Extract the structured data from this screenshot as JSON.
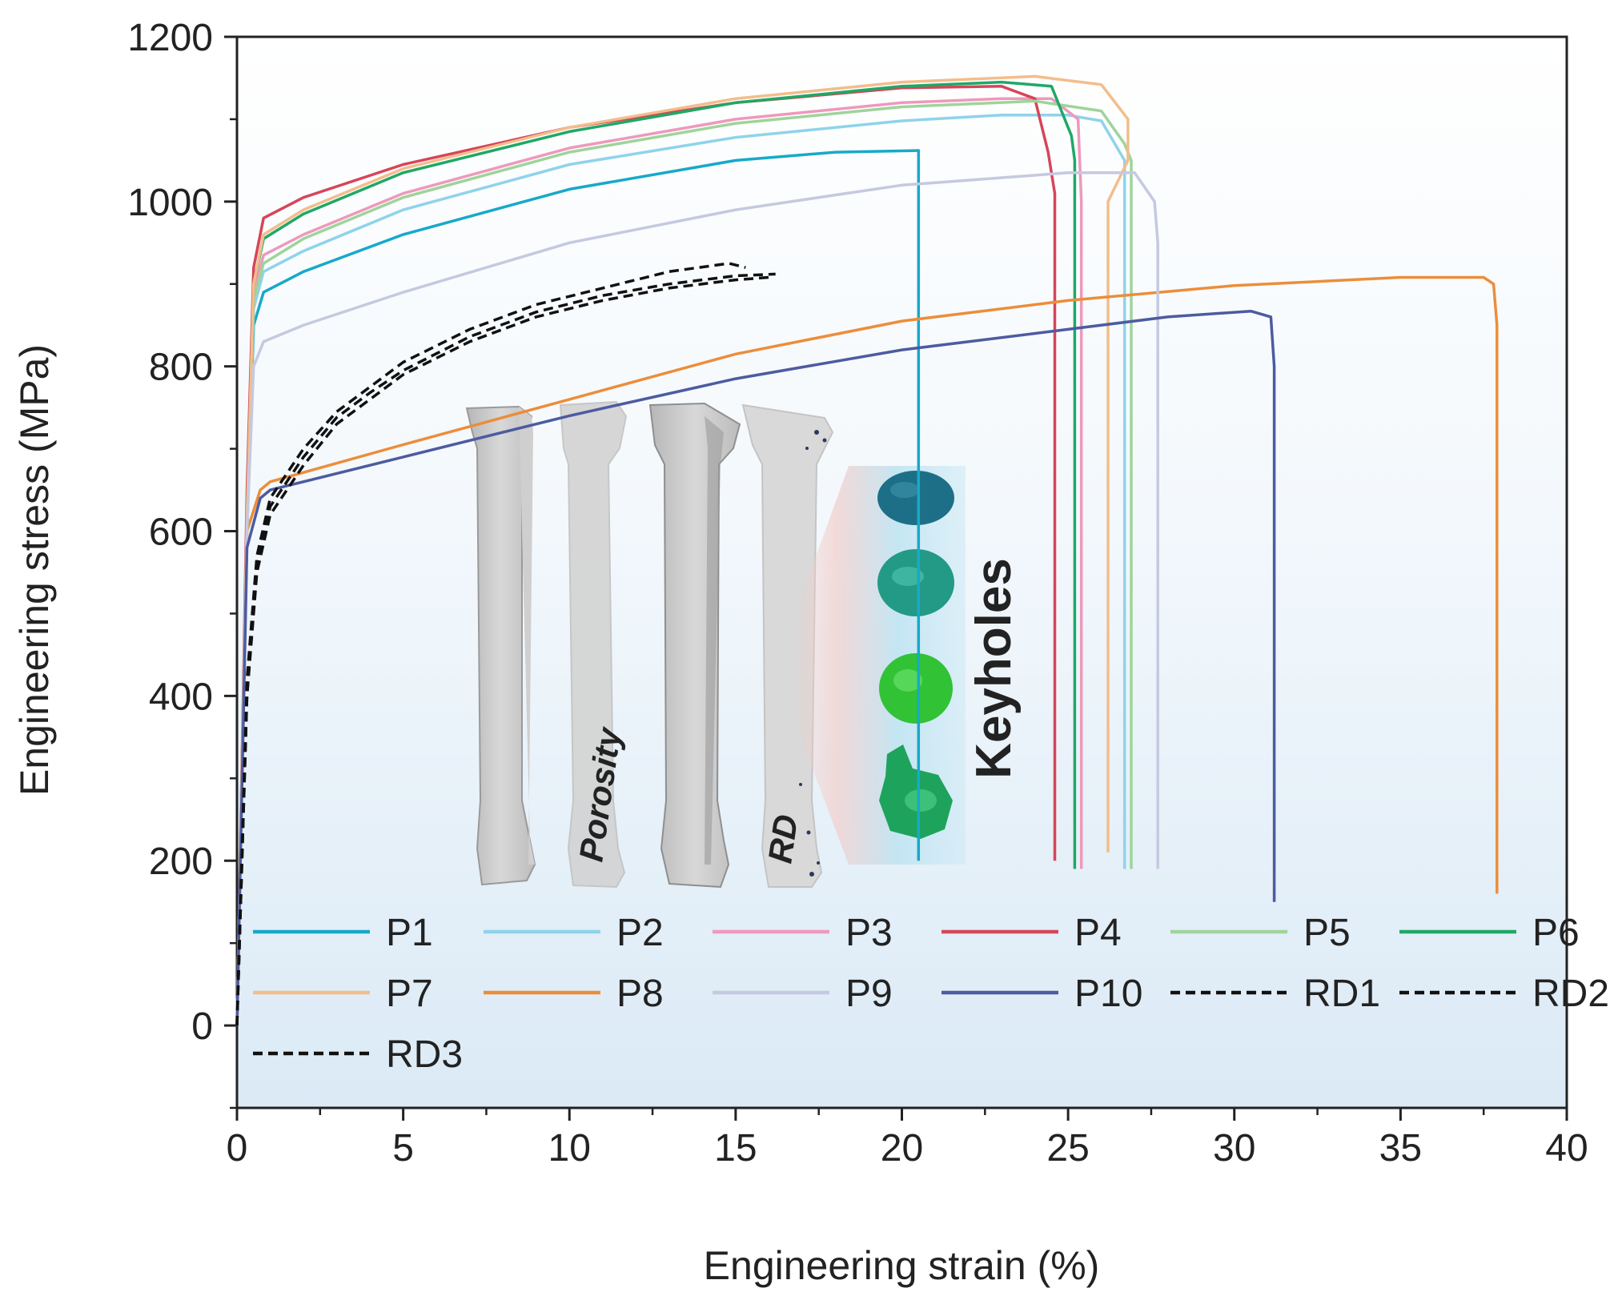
{
  "chart_data": {
    "type": "line",
    "title": "",
    "xlabel": "Engineering strain (%)",
    "ylabel": "Engineering stress (MPa)",
    "xlim": [
      0,
      40
    ],
    "ylim": [
      -100,
      1200
    ],
    "xticks": [
      0,
      5,
      10,
      15,
      20,
      25,
      30,
      35,
      40
    ],
    "yticks": [
      0,
      200,
      400,
      600,
      800,
      1000,
      1200
    ],
    "legend_position": "bottom-left",
    "grid": false,
    "series": [
      {
        "name": "P1",
        "color": "#17a9c9",
        "dash": false,
        "points": [
          [
            0,
            0
          ],
          [
            0.3,
            600
          ],
          [
            0.5,
            850
          ],
          [
            0.8,
            890
          ],
          [
            2,
            915
          ],
          [
            5,
            960
          ],
          [
            10,
            1015
          ],
          [
            15,
            1050
          ],
          [
            18,
            1060
          ],
          [
            20.5,
            1062
          ],
          [
            20.5,
            1000
          ],
          [
            20.5,
            200
          ]
        ]
      },
      {
        "name": "P2",
        "color": "#8fd3ea",
        "dash": false,
        "points": [
          [
            0,
            0
          ],
          [
            0.3,
            600
          ],
          [
            0.5,
            870
          ],
          [
            0.8,
            915
          ],
          [
            2,
            940
          ],
          [
            5,
            990
          ],
          [
            10,
            1045
          ],
          [
            15,
            1078
          ],
          [
            20,
            1098
          ],
          [
            23,
            1105
          ],
          [
            25,
            1105
          ],
          [
            26,
            1098
          ],
          [
            26.7,
            1050
          ],
          [
            26.7,
            190
          ]
        ]
      },
      {
        "name": "P3",
        "color": "#ee99bb",
        "dash": false,
        "points": [
          [
            0,
            0
          ],
          [
            0.3,
            600
          ],
          [
            0.5,
            890
          ],
          [
            0.8,
            935
          ],
          [
            2,
            960
          ],
          [
            5,
            1010
          ],
          [
            10,
            1065
          ],
          [
            15,
            1100
          ],
          [
            20,
            1120
          ],
          [
            23,
            1125
          ],
          [
            24.5,
            1125
          ],
          [
            25.3,
            1100
          ],
          [
            25.4,
            1000
          ],
          [
            25.4,
            190
          ]
        ]
      },
      {
        "name": "P4",
        "color": "#d6455a",
        "dash": false,
        "points": [
          [
            0,
            0
          ],
          [
            0.3,
            650
          ],
          [
            0.5,
            920
          ],
          [
            0.8,
            980
          ],
          [
            2,
            1005
          ],
          [
            5,
            1045
          ],
          [
            10,
            1090
          ],
          [
            15,
            1120
          ],
          [
            20,
            1138
          ],
          [
            23,
            1140
          ],
          [
            24,
            1125
          ],
          [
            24.4,
            1060
          ],
          [
            24.6,
            1010
          ],
          [
            24.6,
            200
          ]
        ]
      },
      {
        "name": "P5",
        "color": "#9fd49a",
        "dash": false,
        "points": [
          [
            0,
            0
          ],
          [
            0.3,
            600
          ],
          [
            0.5,
            880
          ],
          [
            0.8,
            925
          ],
          [
            2,
            955
          ],
          [
            5,
            1005
          ],
          [
            10,
            1060
          ],
          [
            15,
            1095
          ],
          [
            20,
            1115
          ],
          [
            24,
            1122
          ],
          [
            26,
            1110
          ],
          [
            26.7,
            1070
          ],
          [
            26.9,
            1050
          ],
          [
            26.9,
            190
          ]
        ]
      },
      {
        "name": "P6",
        "color": "#1fa866",
        "dash": false,
        "points": [
          [
            0,
            0
          ],
          [
            0.3,
            620
          ],
          [
            0.5,
            900
          ],
          [
            0.8,
            955
          ],
          [
            2,
            985
          ],
          [
            5,
            1035
          ],
          [
            10,
            1085
          ],
          [
            15,
            1120
          ],
          [
            20,
            1140
          ],
          [
            23,
            1145
          ],
          [
            24.5,
            1140
          ],
          [
            25.1,
            1080
          ],
          [
            25.2,
            1050
          ],
          [
            25.2,
            190
          ]
        ]
      },
      {
        "name": "P7",
        "color": "#f3bd8b",
        "dash": false,
        "points": [
          [
            0,
            0
          ],
          [
            0.3,
            620
          ],
          [
            0.5,
            900
          ],
          [
            0.8,
            960
          ],
          [
            2,
            990
          ],
          [
            5,
            1040
          ],
          [
            10,
            1090
          ],
          [
            15,
            1125
          ],
          [
            20,
            1145
          ],
          [
            24,
            1152
          ],
          [
            26,
            1142
          ],
          [
            26.8,
            1100
          ],
          [
            26.8,
            1050
          ],
          [
            26.2,
            1000
          ],
          [
            26.2,
            210
          ]
        ]
      },
      {
        "name": "P8",
        "color": "#ec8d3b",
        "dash": false,
        "points": [
          [
            0,
            0
          ],
          [
            0.3,
            600
          ],
          [
            0.7,
            650
          ],
          [
            1,
            660
          ],
          [
            5,
            705
          ],
          [
            10,
            760
          ],
          [
            15,
            815
          ],
          [
            20,
            855
          ],
          [
            25,
            880
          ],
          [
            30,
            898
          ],
          [
            35,
            908
          ],
          [
            37.5,
            908
          ],
          [
            37.8,
            900
          ],
          [
            37.9,
            850
          ],
          [
            37.9,
            600
          ],
          [
            37.9,
            160
          ]
        ]
      },
      {
        "name": "P9",
        "color": "#c5c9e0",
        "dash": false,
        "points": [
          [
            0,
            0
          ],
          [
            0.3,
            600
          ],
          [
            0.5,
            800
          ],
          [
            0.8,
            830
          ],
          [
            2,
            850
          ],
          [
            5,
            890
          ],
          [
            10,
            950
          ],
          [
            15,
            990
          ],
          [
            20,
            1020
          ],
          [
            25,
            1035
          ],
          [
            27,
            1035
          ],
          [
            27.6,
            1000
          ],
          [
            27.7,
            950
          ],
          [
            27.7,
            190
          ]
        ]
      },
      {
        "name": "P10",
        "color": "#4d5ba0",
        "dash": false,
        "points": [
          [
            0,
            0
          ],
          [
            0.3,
            580
          ],
          [
            0.7,
            640
          ],
          [
            1,
            650
          ],
          [
            5,
            690
          ],
          [
            10,
            740
          ],
          [
            15,
            785
          ],
          [
            20,
            820
          ],
          [
            25,
            845
          ],
          [
            28,
            860
          ],
          [
            30.5,
            867
          ],
          [
            31.1,
            860
          ],
          [
            31.2,
            800
          ],
          [
            31.2,
            150
          ]
        ]
      },
      {
        "name": "RD1",
        "color": "#111111",
        "dash": true,
        "points": [
          [
            0,
            0
          ],
          [
            0.3,
            400
          ],
          [
            0.6,
            550
          ],
          [
            1,
            620
          ],
          [
            2,
            680
          ],
          [
            3,
            730
          ],
          [
            4,
            760
          ],
          [
            5,
            790
          ],
          [
            7,
            830
          ],
          [
            9,
            860
          ],
          [
            11,
            880
          ],
          [
            13,
            895
          ],
          [
            15,
            905
          ],
          [
            16,
            908
          ]
        ]
      },
      {
        "name": "RD2",
        "color": "#111111",
        "dash": true,
        "points": [
          [
            0,
            0
          ],
          [
            0.3,
            420
          ],
          [
            0.6,
            570
          ],
          [
            1,
            640
          ],
          [
            2,
            700
          ],
          [
            3,
            745
          ],
          [
            4,
            775
          ],
          [
            5,
            805
          ],
          [
            7,
            845
          ],
          [
            9,
            875
          ],
          [
            11,
            895
          ],
          [
            13,
            915
          ],
          [
            14.8,
            925
          ],
          [
            15.3,
            920
          ]
        ]
      },
      {
        "name": "RD3",
        "color": "#111111",
        "dash": true,
        "points": [
          [
            0,
            0
          ],
          [
            0.3,
            400
          ],
          [
            0.6,
            560
          ],
          [
            1,
            630
          ],
          [
            2,
            690
          ],
          [
            3,
            738
          ],
          [
            4,
            768
          ],
          [
            5,
            795
          ],
          [
            7,
            836
          ],
          [
            9,
            866
          ],
          [
            11,
            886
          ],
          [
            13,
            900
          ],
          [
            15,
            910
          ],
          [
            16.2,
            912
          ]
        ]
      }
    ],
    "annotations": {
      "porosity_label": "Porosity",
      "rd_label": "RD",
      "keyholes_label": "Keyholes"
    }
  }
}
